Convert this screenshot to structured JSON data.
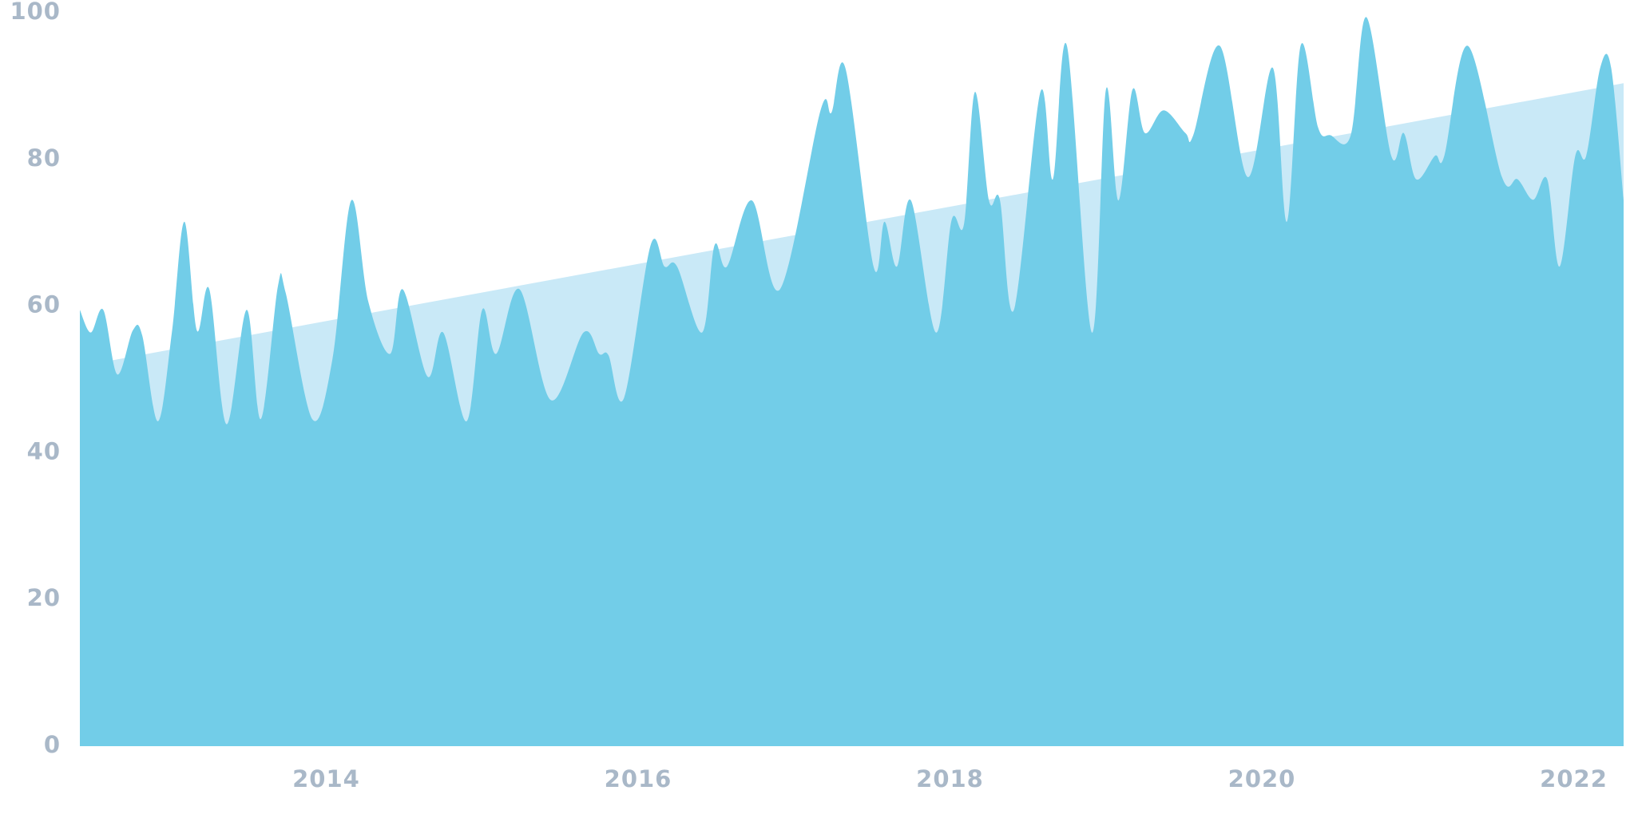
{
  "chart_data": {
    "type": "area",
    "x": [
      2012.42,
      2012.49,
      2012.57,
      2012.66,
      2012.76,
      2012.82,
      2012.92,
      2013.01,
      2013.09,
      2013.17,
      2013.25,
      2013.36,
      2013.49,
      2013.58,
      2013.69,
      2013.74,
      2013.91,
      2014.04,
      2014.16,
      2014.27,
      2014.41,
      2014.49,
      2014.65,
      2014.75,
      2014.9,
      2015.0,
      2015.09,
      2015.24,
      2015.44,
      2015.65,
      2015.75,
      2015.81,
      2015.91,
      2016.08,
      2016.17,
      2016.25,
      2016.41,
      2016.49,
      2016.57,
      2016.73,
      2016.91,
      2017.17,
      2017.24,
      2017.33,
      2017.51,
      2017.58,
      2017.66,
      2017.75,
      2017.91,
      2018.01,
      2018.09,
      2018.16,
      2018.25,
      2018.32,
      2018.41,
      2018.58,
      2018.66,
      2018.75,
      2018.91,
      2019.0,
      2019.08,
      2019.17,
      2019.25,
      2019.37,
      2019.51,
      2019.56,
      2019.73,
      2019.91,
      2020.07,
      2020.16,
      2020.25,
      2020.36,
      2020.44,
      2020.57,
      2020.67,
      2020.83,
      2020.91,
      2020.99,
      2021.11,
      2021.17,
      2021.32,
      2021.54,
      2021.64,
      2021.74,
      2021.83,
      2021.91,
      2022.01,
      2022.08,
      2022.17,
      2022.24,
      2022.32
    ],
    "series": [
      {
        "color": "#72cde8",
        "values": [
          59.5,
          56.4,
          59.5,
          50.7,
          56.7,
          56,
          44.3,
          56.4,
          71.5,
          56.7,
          62.3,
          43.9,
          59.5,
          44.6,
          62.7,
          61.8,
          44.6,
          52.8,
          74.4,
          60.6,
          53.5,
          62.3,
          50.4,
          56.4,
          44.3,
          59.5,
          53.5,
          62.3,
          47.2,
          56.4,
          53.5,
          53.3,
          47.5,
          68.3,
          65.4,
          65.4,
          56.4,
          68.3,
          65.4,
          74.4,
          62.3,
          86.7,
          86.4,
          92.4,
          65.4,
          71.5,
          65.4,
          74.4,
          56.4,
          71.7,
          71.2,
          89.2,
          74.4,
          74.5,
          59.5,
          89.2,
          77.3,
          95.5,
          56.4,
          89.5,
          74.4,
          89.5,
          83.6,
          86.7,
          83.6,
          83.3,
          95.5,
          77.6,
          92.5,
          71.5,
          95.6,
          84.4,
          83.3,
          83.3,
          99.4,
          80.5,
          83.6,
          77.3,
          80.5,
          80.5,
          95.5,
          77.6,
          77.3,
          74.5,
          77.3,
          65.4,
          80.5,
          80.5,
          92.5,
          92.5,
          74.4
        ]
      }
    ],
    "trend": {
      "color": "#c9e9f7",
      "x": [
        2012.42,
        2022.32
      ],
      "values": [
        51.8,
        90.4
      ]
    },
    "xlim": [
      2012.42,
      2022.32
    ],
    "xticks": [
      2014,
      2016,
      2018,
      2020,
      2022
    ],
    "ylim": [
      0,
      100
    ],
    "yticks": [
      0,
      20,
      40,
      60,
      80,
      100
    ]
  }
}
